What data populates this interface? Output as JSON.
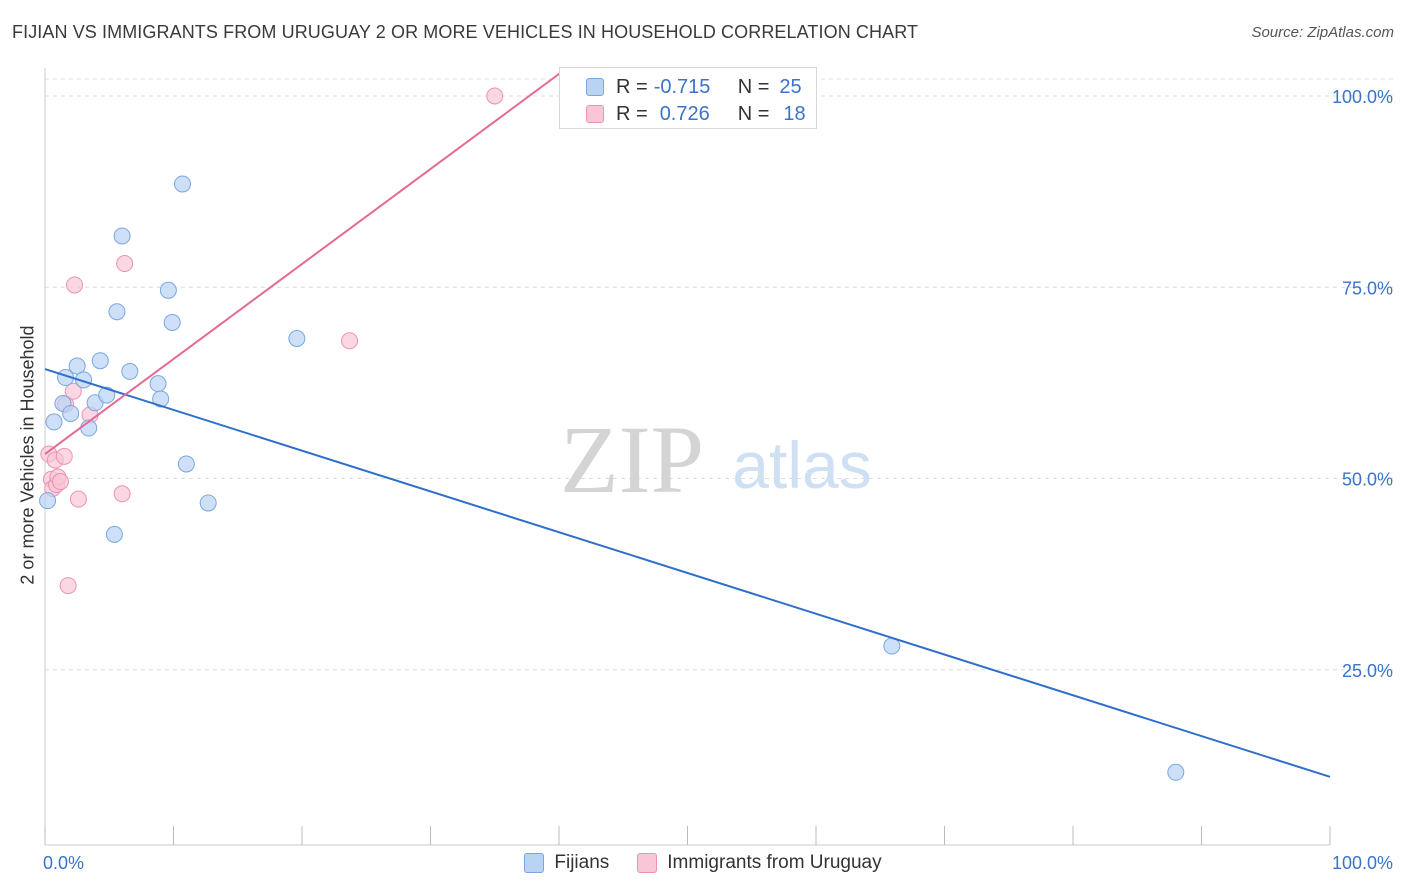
{
  "header": {
    "title": "FIJIAN VS IMMIGRANTS FROM URUGUAY 2 OR MORE VEHICLES IN HOUSEHOLD CORRELATION CHART",
    "source": "Source: ZipAtlas.com"
  },
  "watermark": {
    "zip": "ZIP",
    "atlas": "atlas"
  },
  "legend": {
    "rows": [
      {
        "r_label": "R =",
        "r_value": "-0.715",
        "n_label": "N =",
        "n_value": "25"
      },
      {
        "r_label": "R =",
        "r_value": "0.726",
        "n_label": "N =",
        "n_value": "18"
      }
    ]
  },
  "colors": {
    "fijians_fill": "#b9d3f3",
    "fijians_stroke": "#7aa7df",
    "fijians_line": "#2e6fcc",
    "uruguay_fill": "#f8c6d6",
    "uruguay_stroke": "#ec93b0",
    "uruguay_line": "#e46a94",
    "tick_label": "#3a73c9",
    "grid": "#dddddd"
  },
  "chart_data": {
    "type": "scatter",
    "title": "FIJIAN VS IMMIGRANTS FROM URUGUAY 2 OR MORE VEHICLES IN HOUSEHOLD CORRELATION CHART",
    "xlabel": "",
    "ylabel": "2 or more Vehicles in Household",
    "xlim": [
      0,
      100
    ],
    "ylim": [
      0,
      102
    ],
    "x_tick_labels": [
      {
        "value": 0,
        "label": "0.0%"
      },
      {
        "value": 100,
        "label": "100.0%"
      }
    ],
    "y_tick_labels": [
      {
        "value": 100,
        "label": "100.0%"
      },
      {
        "value": 75,
        "label": "75.0%"
      },
      {
        "value": 50,
        "label": "50.0%"
      },
      {
        "value": 25,
        "label": "25.0%"
      }
    ],
    "grid": true,
    "legend_position": "bottom-center",
    "series": [
      {
        "name": "Fijians",
        "r": -0.715,
        "n": 25,
        "trend": {
          "x": [
            0,
            100
          ],
          "y": [
            64.3,
            11.0
          ]
        },
        "points": [
          {
            "x": 0.2,
            "y": 47.1
          },
          {
            "x": 0.7,
            "y": 57.4
          },
          {
            "x": 1.4,
            "y": 59.8
          },
          {
            "x": 1.6,
            "y": 63.2
          },
          {
            "x": 2.0,
            "y": 58.5
          },
          {
            "x": 2.5,
            "y": 64.7
          },
          {
            "x": 3.0,
            "y": 62.9
          },
          {
            "x": 3.4,
            "y": 56.6
          },
          {
            "x": 3.9,
            "y": 59.9
          },
          {
            "x": 4.3,
            "y": 65.4
          },
          {
            "x": 4.8,
            "y": 60.9
          },
          {
            "x": 5.4,
            "y": 42.7
          },
          {
            "x": 5.6,
            "y": 71.8
          },
          {
            "x": 6.0,
            "y": 81.7
          },
          {
            "x": 6.6,
            "y": 64.0
          },
          {
            "x": 8.8,
            "y": 62.4
          },
          {
            "x": 9.0,
            "y": 60.4
          },
          {
            "x": 9.6,
            "y": 74.6
          },
          {
            "x": 9.9,
            "y": 70.4
          },
          {
            "x": 10.7,
            "y": 88.5
          },
          {
            "x": 11.0,
            "y": 51.9
          },
          {
            "x": 12.7,
            "y": 46.8
          },
          {
            "x": 19.6,
            "y": 68.3
          },
          {
            "x": 65.9,
            "y": 28.1
          },
          {
            "x": 88.0,
            "y": 11.6
          }
        ]
      },
      {
        "name": "Immigrants from Uruguay",
        "r": 0.726,
        "n": 18,
        "trend": {
          "x": [
            0,
            40.5
          ],
          "y": [
            53.2,
            103.5
          ]
        },
        "points": [
          {
            "x": 0.3,
            "y": 53.2
          },
          {
            "x": 0.5,
            "y": 49.9
          },
          {
            "x": 0.6,
            "y": 48.7
          },
          {
            "x": 0.8,
            "y": 52.4
          },
          {
            "x": 0.9,
            "y": 49.2
          },
          {
            "x": 1.0,
            "y": 50.2
          },
          {
            "x": 1.2,
            "y": 49.6
          },
          {
            "x": 1.5,
            "y": 52.9
          },
          {
            "x": 1.6,
            "y": 59.7
          },
          {
            "x": 1.8,
            "y": 36.0
          },
          {
            "x": 2.2,
            "y": 61.4
          },
          {
            "x": 2.3,
            "y": 75.3
          },
          {
            "x": 2.6,
            "y": 47.3
          },
          {
            "x": 3.5,
            "y": 58.3
          },
          {
            "x": 6.0,
            "y": 48.0
          },
          {
            "x": 6.2,
            "y": 78.1
          },
          {
            "x": 23.7,
            "y": 68.0
          },
          {
            "x": 35.0,
            "y": 100.0
          }
        ]
      }
    ]
  }
}
